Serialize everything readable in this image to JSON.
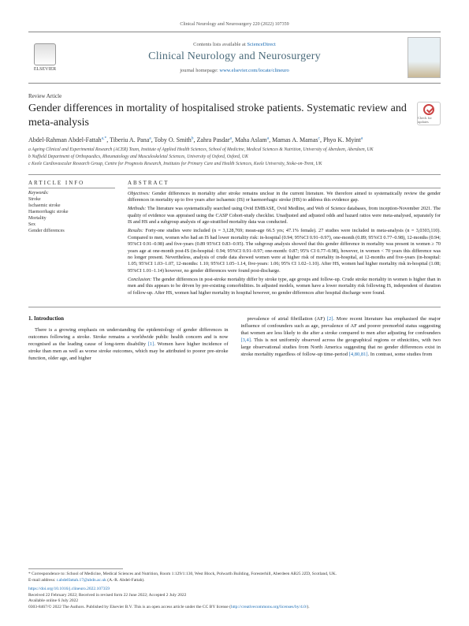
{
  "top_citation": "Clinical Neurology and Neurosurgery 220 (2022) 107359",
  "header": {
    "contents_prefix": "Contents lists available at ",
    "contents_link": "ScienceDirect",
    "journal_title": "Clinical Neurology and Neurosurgery",
    "homepage_prefix": "journal homepage: ",
    "homepage_link": "www.elsevier.com/locate/clineuro",
    "publisher_name": "ELSEVIER"
  },
  "article_type": "Review Article",
  "title": "Gender differences in mortality of hospitalised stroke patients. Systematic review and meta-analysis",
  "check_badge": "Check for updates",
  "authors_html": "Abdel-Rahman Abdel-Fattah<sup>a,*</sup>, Tiberiu A. Pana<sup>a</sup>, Toby O. Smith<sup>b</sup>, Zahra Pasdar<sup>a</sup>, Maha Aslam<sup>a</sup>, Mamas A. Mamas<sup>c</sup>, Phyo K. Myint<sup>a</sup>",
  "affiliations": [
    "a Ageing Clinical and Experimental Research (ACER) Team, Institute of Applied Health Sciences, School of Medicine, Medical Sciences & Nutrition, University of Aberdeen, Aberdeen, UK",
    "b Nuffield Department of Orthopaedics, Rheumatology and Musculoskeletal Sciences, University of Oxford, Oxford, UK",
    "c Keele Cardiovascular Research Group, Centre for Prognosis Research, Institutes for Primary Care and Health Sciences, Keele University, Stoke-on-Trent, UK"
  ],
  "info": {
    "head": "ARTICLE INFO",
    "kw_label": "Keywords:",
    "keywords": [
      "Stroke",
      "Ischaemic stroke",
      "Haemorrhagic stroke",
      "Mortality",
      "Sex",
      "Gender differences"
    ]
  },
  "abstract": {
    "head": "ABSTRACT",
    "objectives_label": "Objectives:",
    "objectives": "Gender differences in mortality after stroke remains unclear in the current literature. We therefore aimed to systematically review the gender differences in mortality up to five years after ischaemic (IS) or haemorrhagic stroke (HS) to address this evidence gap.",
    "methods_label": "Methods:",
    "methods": "The literature was systematically searched using Ovid EMBASE, Ovid Medline, and Web of Science databases, from inception-November 2021. The quality of evidence was appraised using the CASP Cohort-study checklist. Unadjusted and adjusted odds and hazard ratios were meta-analysed, separately for IS and HS and a subgroup analysis of age-stratified mortality data was conducted.",
    "results_label": "Results:",
    "results": "Forty-one studies were included (n = 3,128,769; mean-age 66.5 yrs; 47.1% female). 27 studies were included in meta-analysis (n = 3,0303,110). Compared to men, women who had an IS had lower mortality risk: in-hospital (0.94; 95%CI 0.91–0.97), one-month (0.89; 95%CI 0.77–0.98), 12-months (0.94; 95%CI 0.91–0.98) and five-years (0.89 95%CI 0.83–0.95). The subgroup analysis showed that this gender difference in mortality was present in women ≥ 70 years age at one-month post-IS (in-hospital: 0.94; 95%CI 0.91–0.97; one-month: 0.87; 95% CI 0.77–0.98), however, in women < 70 years this difference was no longer present. Nevertheless, analysis of crude data showed women were at higher risk of mortality in-hospital, at 12-months and five-years (in-hospital: 1.05; 95%CI 1.03–1.07, 12-months: 1.10; 95%CI 1.05–1.14, five-years: 1.06; 95% CI 1.02–1.10). After HS, women had higher mortality risk in-hospital (1.08; 95%CI 1.01–1.14) however, no gender differences were found post-discharge.",
    "conclusion_label": "Conclusion:",
    "conclusion": "The gender differences in post-stroke mortality differ by stroke type, age groups and follow-up. Crude stroke mortality in women is higher than in men and this appears to be driven by pre-existing comorbidities. In adjusted models, women have a lower mortality risk following IS, independent of duration of follow-up. After HS, women had higher mortality in hospital however, no gender differences after hospital discharge were found."
  },
  "body": {
    "intro_head": "1. Introduction",
    "left_p1": "There is a growing emphasis on understanding the epidemiology of gender differences in outcomes following a stroke. Stroke remains a worldwide public health concern and is now recognised as the leading cause of long-term disability [1]. Women have higher incidence of stroke than men as well as worse stroke outcomes, which may be attributed to poorer pre-stroke function, older age, and higher",
    "right_p1": "prevalence of atrial fibrillation (AF) [2]. More recent literature has emphasised the major influence of confounders such as age, prevalence of AF and poorer premorbid status suggesting that women are less likely to die after a stroke compared to men after adjusting for confounders [3,4]. This is not uniformly observed across the geographical regions or ethnicities, with two large observational studies from North America suggesting that no gender differences exist in stroke mortality regardless of follow-up time-period [4,80,81]. In contrast, some studies from"
  },
  "footer": {
    "corr": "* Correspondence to: School of Medicine, Medical Sciences and Nutrition, Room 1:129/1:130, West Block, Polwarth Building, Foresterhill, Aberdeen AB25 2ZD, Scotland, UK.",
    "email_label": "E-mail address: ",
    "email": "r.abdelfattah.17@abdn.ac.uk",
    "email_suffix": " (A.-R. Abdel-Fattah).",
    "doi": "https://doi.org/10.1016/j.clineuro.2022.107359",
    "history": "Received 22 February 2022; Received in revised form 22 June 2022; Accepted 2 July 2022",
    "avail": "Available online 6 July 2022",
    "copyright": "0303-8467/© 2022 The Authors. Published by Elsevier B.V. This is an open access article under the CC BY license (",
    "cc_link": "http://creativecommons.org/licenses/by/4.0/",
    "copyright_end": ")."
  },
  "colors": {
    "link": "#1a6bb3",
    "journal_title": "#4a6a7a",
    "rule": "#999999",
    "text": "#222222"
  }
}
